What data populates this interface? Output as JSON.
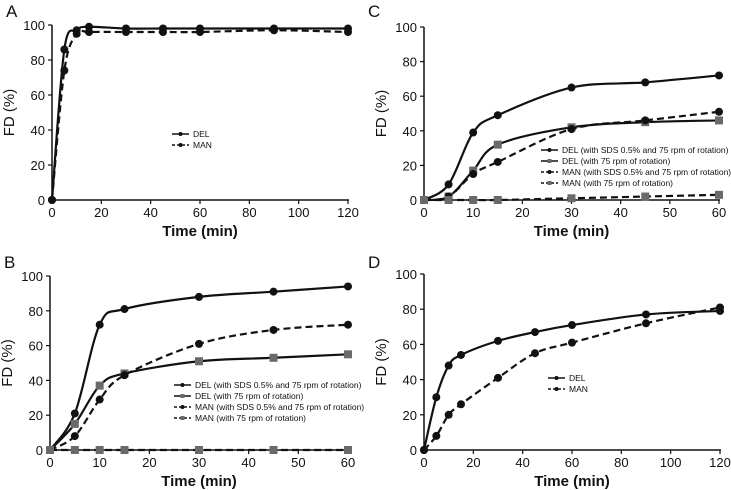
{
  "chart_data": [
    {
      "panel": "A",
      "type": "line",
      "xlabel": "Time (min)",
      "ylabel": "FD (%)",
      "xlim": [
        0,
        120
      ],
      "ylim": [
        0,
        100
      ],
      "xticks": [
        0,
        20,
        40,
        60,
        80,
        100,
        120
      ],
      "yticks": [
        0,
        20,
        40,
        60,
        80,
        100
      ],
      "legend": "center",
      "series": [
        {
          "name": "DEL",
          "style": "solid",
          "marker": "circle",
          "x": [
            0,
            5,
            10,
            15,
            30,
            45,
            60,
            90,
            120
          ],
          "y": [
            0,
            86,
            97,
            99,
            98,
            98,
            98,
            98,
            98
          ]
        },
        {
          "name": "MAN",
          "style": "dashed",
          "marker": "circle",
          "x": [
            0,
            5,
            10,
            15,
            30,
            45,
            60,
            90,
            120
          ],
          "y": [
            0,
            74,
            95,
            96,
            96,
            96,
            96,
            97,
            96
          ]
        }
      ]
    },
    {
      "panel": "B",
      "type": "line",
      "xlabel": "Time (min)",
      "ylabel": "FD (%)",
      "xlim": [
        0,
        60
      ],
      "ylim": [
        0,
        100
      ],
      "xticks": [
        0,
        10,
        20,
        30,
        40,
        50,
        60
      ],
      "yticks": [
        0,
        20,
        40,
        60,
        80,
        100
      ],
      "legend": "center-right",
      "series": [
        {
          "name": "DEL (with SDS 0.5% and 75 rpm of rotation)",
          "style": "solid",
          "marker": "circle",
          "x": [
            0,
            5,
            10,
            15,
            30,
            45,
            60
          ],
          "y": [
            0,
            21,
            72,
            81,
            88,
            91,
            94
          ]
        },
        {
          "name": "DEL (with 75 rpm of rotation)",
          "style": "solid",
          "marker": "square",
          "x": [
            0,
            5,
            10,
            15,
            30,
            45,
            60
          ],
          "y": [
            0,
            15,
            37,
            44,
            51,
            53,
            55
          ]
        },
        {
          "name": "MAN (with SDS 0.5% and 75 rpm of rotation)",
          "style": "dashed",
          "marker": "circle",
          "x": [
            0,
            5,
            10,
            15,
            30,
            45,
            60
          ],
          "y": [
            0,
            8,
            29,
            43,
            61,
            69,
            72
          ]
        },
        {
          "name": "MAN (with 75 rpm of rotation)",
          "style": "dashed",
          "marker": "square",
          "x": [
            0,
            5,
            10,
            15,
            30,
            45,
            60
          ],
          "y": [
            0,
            0,
            0,
            0,
            0,
            0,
            0
          ]
        }
      ]
    },
    {
      "panel": "C",
      "type": "line",
      "xlabel": "Time (min)",
      "ylabel": "FD (%)",
      "xlim": [
        0,
        60
      ],
      "ylim": [
        0,
        100
      ],
      "xticks": [
        0,
        10,
        20,
        30,
        40,
        50,
        60
      ],
      "yticks": [
        0,
        20,
        40,
        60,
        80,
        100
      ],
      "legend": "center-right",
      "series": [
        {
          "name": "DEL (with SDS 0.5% and 75 rpm of rotation)",
          "style": "solid",
          "marker": "circle",
          "x": [
            0,
            5,
            10,
            15,
            30,
            45,
            60
          ],
          "y": [
            0,
            9,
            39,
            49,
            65,
            68,
            72
          ]
        },
        {
          "name": "DEL (with 75 rpm of rotation)",
          "style": "solid",
          "marker": "square",
          "x": [
            0,
            5,
            10,
            15,
            30,
            45,
            60
          ],
          "y": [
            0,
            2,
            17,
            32,
            42,
            45,
            46
          ]
        },
        {
          "name": "MAN (with SDS 0.5% and 75 rpm of rotation)",
          "style": "dashed",
          "marker": "circle",
          "x": [
            0,
            5,
            10,
            15,
            30,
            45,
            60
          ],
          "y": [
            0,
            2,
            15,
            22,
            41,
            46,
            51
          ]
        },
        {
          "name": "MAN (with 75 rpm of rotation)",
          "style": "dashed",
          "marker": "square",
          "x": [
            0,
            5,
            10,
            15,
            30,
            45,
            60
          ],
          "y": [
            0,
            0,
            0,
            0,
            1,
            2,
            3
          ]
        }
      ]
    },
    {
      "panel": "D",
      "type": "line",
      "xlabel": "Time (min)",
      "ylabel": "FD (%)",
      "xlim": [
        0,
        120
      ],
      "ylim": [
        0,
        100
      ],
      "xticks": [
        0,
        20,
        40,
        60,
        80,
        100,
        120
      ],
      "yticks": [
        0,
        20,
        40,
        60,
        80,
        100
      ],
      "legend": "center-right",
      "series": [
        {
          "name": "DEL",
          "style": "solid",
          "marker": "circle",
          "x": [
            0,
            5,
            10,
            15,
            30,
            45,
            60,
            90,
            120
          ],
          "y": [
            0,
            30,
            48,
            54,
            62,
            67,
            71,
            77,
            79
          ]
        },
        {
          "name": "MAN",
          "style": "dashed",
          "marker": "circle",
          "x": [
            0,
            5,
            10,
            15,
            30,
            45,
            60,
            90,
            120
          ],
          "y": [
            0,
            8,
            20,
            26,
            41,
            55,
            61,
            72,
            81
          ]
        }
      ]
    }
  ]
}
